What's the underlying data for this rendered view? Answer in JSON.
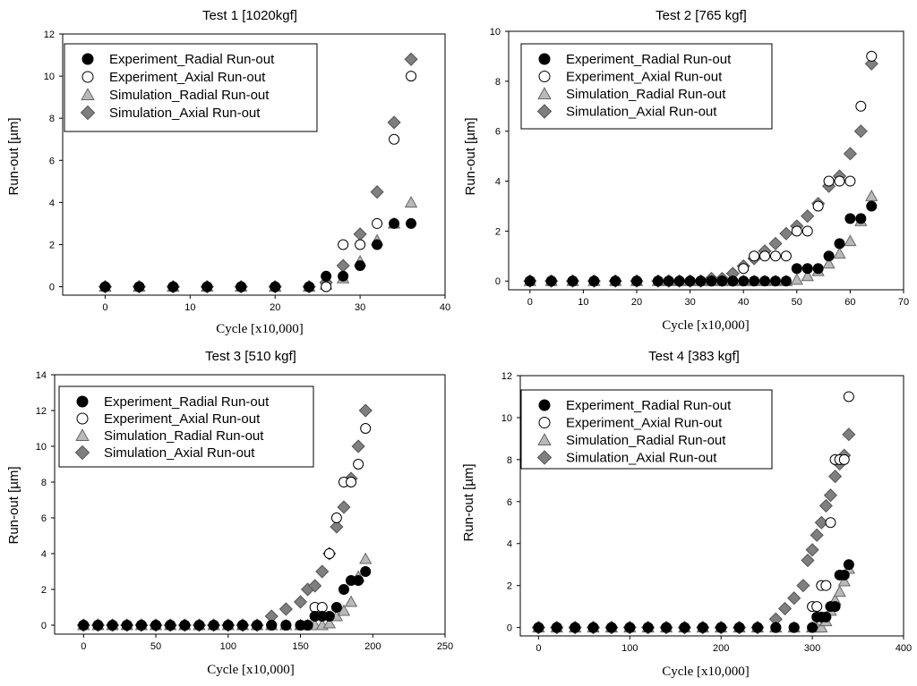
{
  "chart_data": [
    {
      "type": "scatter",
      "title": "Test 1 [1020kgf]",
      "xlabel": "Cycle [x10,000]",
      "ylabel": "Run-out [µm]",
      "xlim": [
        -5,
        40
      ],
      "ylim": [
        -0.4,
        12
      ],
      "xticks": [
        0,
        10,
        20,
        30,
        40
      ],
      "yticks": [
        0,
        2,
        4,
        6,
        8,
        10,
        12
      ],
      "legend": "top-left",
      "series": [
        {
          "name": "Experiment_Radial Run-out",
          "marker": "filled-circle",
          "x": [
            0,
            4,
            8,
            12,
            16,
            20,
            24,
            26,
            28,
            30,
            32,
            34,
            36
          ],
          "y": [
            0,
            0,
            0,
            0,
            0,
            0,
            0,
            0.5,
            0.5,
            1,
            2,
            3,
            3
          ]
        },
        {
          "name": "Experiment_Axial Run-out",
          "marker": "open-circle",
          "x": [
            0,
            4,
            8,
            12,
            16,
            20,
            24,
            26,
            28,
            30,
            32,
            34,
            36
          ],
          "y": [
            0,
            0,
            0,
            0,
            0,
            0,
            0,
            0,
            2,
            2,
            3,
            7,
            10
          ]
        },
        {
          "name": "Simulation_Radial Run-out",
          "marker": "triangle",
          "x": [
            0,
            4,
            8,
            12,
            16,
            20,
            24,
            26,
            28,
            30,
            32,
            34,
            36
          ],
          "y": [
            0,
            0,
            0,
            0,
            0,
            0,
            0,
            0.1,
            0.4,
            1.2,
            2.2,
            3,
            4
          ]
        },
        {
          "name": "Simulation_Axial Run-out",
          "marker": "diamond",
          "x": [
            0,
            4,
            8,
            12,
            16,
            20,
            24,
            26,
            28,
            30,
            32,
            34,
            36
          ],
          "y": [
            0,
            0,
            0,
            0,
            0,
            0,
            0,
            0.2,
            1,
            2.5,
            4.5,
            7.8,
            10.8
          ]
        }
      ]
    },
    {
      "type": "scatter",
      "title": "Test 2 [765 kgf]",
      "xlabel": "Cycle [x10,000]",
      "ylabel": "Run-out [µm]",
      "xlim": [
        -4,
        70
      ],
      "ylim": [
        -0.35,
        10
      ],
      "xticks": [
        0,
        10,
        20,
        30,
        40,
        50,
        60,
        70
      ],
      "yticks": [
        0,
        2,
        4,
        6,
        8,
        10
      ],
      "legend": "top-left",
      "series": [
        {
          "name": "Experiment_Radial Run-out",
          "marker": "filled-circle",
          "x": [
            0,
            4,
            8,
            12,
            16,
            20,
            24,
            26,
            28,
            30,
            32,
            34,
            36,
            38,
            40,
            42,
            44,
            46,
            48,
            50,
            52,
            54,
            56,
            58,
            60,
            62,
            64
          ],
          "y": [
            0,
            0,
            0,
            0,
            0,
            0,
            0,
            0,
            0,
            0,
            0,
            0,
            0,
            0,
            0,
            0,
            0,
            0,
            0,
            0.5,
            0.5,
            0.5,
            1,
            1.5,
            2.5,
            2.5,
            3
          ]
        },
        {
          "name": "Experiment_Axial Run-out",
          "marker": "open-circle",
          "x": [
            0,
            4,
            8,
            12,
            16,
            20,
            24,
            26,
            28,
            30,
            32,
            34,
            36,
            38,
            40,
            42,
            44,
            46,
            48,
            50,
            52,
            54,
            56,
            58,
            60,
            62,
            64
          ],
          "y": [
            0,
            0,
            0,
            0,
            0,
            0,
            0,
            0,
            0,
            0,
            0,
            0,
            0,
            0,
            0.5,
            1,
            1,
            1,
            1,
            2,
            2,
            3,
            4,
            4,
            4,
            7,
            9
          ]
        },
        {
          "name": "Simulation_Radial Run-out",
          "marker": "triangle",
          "x": [
            0,
            4,
            8,
            12,
            16,
            20,
            24,
            26,
            28,
            30,
            32,
            34,
            36,
            38,
            40,
            42,
            44,
            46,
            48,
            50,
            52,
            54,
            56,
            58,
            60,
            62,
            64
          ],
          "y": [
            0,
            0,
            0,
            0,
            0,
            0,
            0,
            0,
            0,
            0,
            0,
            0,
            0,
            0,
            0,
            0,
            0,
            0,
            0,
            0.05,
            0.2,
            0.4,
            0.7,
            1.1,
            1.6,
            2.4,
            3.4
          ]
        },
        {
          "name": "Simulation_Axial Run-out",
          "marker": "diamond",
          "x": [
            0,
            4,
            8,
            12,
            16,
            20,
            24,
            26,
            28,
            30,
            32,
            34,
            36,
            38,
            40,
            42,
            44,
            46,
            48,
            50,
            52,
            54,
            56,
            58,
            60,
            62,
            64
          ],
          "y": [
            0,
            0,
            0,
            0,
            0,
            0,
            0,
            0,
            0,
            0,
            0,
            0.1,
            0.1,
            0.3,
            0.6,
            0.9,
            1.2,
            1.5,
            1.9,
            2.2,
            2.6,
            3.1,
            3.8,
            4.2,
            5.1,
            6,
            8.7
          ]
        }
      ]
    },
    {
      "type": "scatter",
      "title": "Test 3 [510 kgf]",
      "xlabel": "Cycle [x10,000]",
      "ylabel": "Run-out [µm]",
      "xlim": [
        -20,
        250
      ],
      "ylim": [
        -0.5,
        14
      ],
      "xticks": [
        0,
        50,
        100,
        150,
        200,
        250
      ],
      "yticks": [
        0,
        2,
        4,
        6,
        8,
        10,
        12,
        14
      ],
      "legend": "top-left",
      "series": [
        {
          "name": "Experiment_Radial Run-out",
          "marker": "filled-circle",
          "x": [
            0,
            10,
            20,
            30,
            40,
            50,
            60,
            70,
            80,
            90,
            100,
            110,
            120,
            130,
            140,
            150,
            155,
            160,
            165,
            170,
            175,
            180,
            185,
            190,
            195
          ],
          "y": [
            0,
            0,
            0,
            0,
            0,
            0,
            0,
            0,
            0,
            0,
            0,
            0,
            0,
            0,
            0,
            0,
            0,
            0.5,
            0.5,
            0.5,
            1,
            2,
            2.5,
            2.5,
            3
          ]
        },
        {
          "name": "Experiment_Axial Run-out",
          "marker": "open-circle",
          "x": [
            0,
            10,
            20,
            30,
            40,
            50,
            60,
            70,
            80,
            90,
            100,
            110,
            120,
            130,
            140,
            150,
            155,
            160,
            165,
            170,
            175,
            180,
            185,
            190,
            195
          ],
          "y": [
            0,
            0,
            0,
            0,
            0,
            0,
            0,
            0,
            0,
            0,
            0,
            0,
            0,
            0,
            0,
            0,
            0,
            1,
            1,
            4,
            6,
            8,
            8,
            9,
            11
          ]
        },
        {
          "name": "Simulation_Radial Run-out",
          "marker": "triangle",
          "x": [
            0,
            10,
            20,
            30,
            40,
            50,
            60,
            70,
            80,
            90,
            100,
            110,
            120,
            130,
            140,
            150,
            155,
            160,
            165,
            170,
            175,
            180,
            185,
            190,
            195
          ],
          "y": [
            0,
            0,
            0,
            0,
            0,
            0,
            0,
            0,
            0,
            0,
            0,
            0,
            0,
            0,
            0,
            0,
            0,
            0,
            0,
            0.1,
            0.5,
            0.8,
            1.3,
            2.7,
            3.7
          ]
        },
        {
          "name": "Simulation_Axial Run-out",
          "marker": "diamond",
          "x": [
            0,
            10,
            20,
            30,
            40,
            50,
            60,
            70,
            80,
            90,
            100,
            110,
            120,
            130,
            140,
            150,
            155,
            160,
            165,
            170,
            175,
            180,
            185,
            190,
            195
          ],
          "y": [
            0,
            0,
            0,
            0,
            0,
            0,
            0,
            0,
            0,
            0,
            0,
            0,
            0,
            0.5,
            0.9,
            1.3,
            2,
            2.2,
            3,
            4,
            5.5,
            6.6,
            8.2,
            10,
            12
          ]
        }
      ]
    },
    {
      "type": "scatter",
      "title": "Test 4 [383 kgf]",
      "xlabel": "Cycle [x10,000]",
      "ylabel": "Run-out [µm]",
      "xlim": [
        -20,
        400
      ],
      "ylim": [
        -0.4,
        12
      ],
      "xticks": [
        0,
        100,
        200,
        300,
        400
      ],
      "yticks": [
        0,
        2,
        4,
        6,
        8,
        10,
        12
      ],
      "legend": "top-left",
      "series": [
        {
          "name": "Experiment_Radial Run-out",
          "marker": "filled-circle",
          "x": [
            0,
            20,
            40,
            60,
            80,
            100,
            120,
            140,
            160,
            180,
            200,
            220,
            240,
            260,
            280,
            300,
            305,
            310,
            315,
            320,
            325,
            330,
            335,
            340
          ],
          "y": [
            0,
            0,
            0,
            0,
            0,
            0,
            0,
            0,
            0,
            0,
            0,
            0,
            0,
            0,
            0,
            0,
            0.5,
            0.5,
            0.5,
            1,
            1,
            2.5,
            2.5,
            3
          ]
        },
        {
          "name": "Experiment_Axial Run-out",
          "marker": "open-circle",
          "x": [
            0,
            20,
            40,
            60,
            80,
            100,
            120,
            140,
            160,
            180,
            200,
            220,
            240,
            260,
            280,
            300,
            305,
            310,
            315,
            320,
            325,
            330,
            335,
            340
          ],
          "y": [
            0,
            0,
            0,
            0,
            0,
            0,
            0,
            0,
            0,
            0,
            0,
            0,
            0,
            0,
            0,
            1,
            1,
            2,
            2,
            5,
            8,
            8,
            8,
            11
          ]
        },
        {
          "name": "Simulation_Radial Run-out",
          "marker": "triangle",
          "x": [
            0,
            20,
            40,
            60,
            80,
            100,
            120,
            140,
            160,
            180,
            200,
            220,
            240,
            260,
            280,
            300,
            305,
            310,
            315,
            320,
            325,
            330,
            335,
            340
          ],
          "y": [
            0,
            0,
            0,
            0,
            0,
            0,
            0,
            0,
            0,
            0,
            0,
            0,
            0,
            0,
            0,
            0,
            0,
            0,
            0.3,
            0.8,
            1.3,
            1.7,
            2.2,
            2.8
          ]
        },
        {
          "name": "Simulation_Axial Run-out",
          "marker": "diamond",
          "x": [
            0,
            20,
            40,
            60,
            80,
            100,
            120,
            140,
            160,
            180,
            200,
            220,
            240,
            260,
            270,
            280,
            290,
            295,
            300,
            305,
            310,
            315,
            320,
            325,
            330,
            335,
            340
          ],
          "y": [
            0,
            0,
            0,
            0,
            0,
            0,
            0,
            0,
            0,
            0,
            0,
            0,
            0,
            0.4,
            0.9,
            1.4,
            2,
            3.2,
            3.7,
            4.4,
            5,
            5.8,
            6.3,
            7.2,
            7.8,
            8.2,
            9.2
          ]
        }
      ]
    }
  ],
  "colors": {
    "filled": "#000000",
    "triangle_fill": "#b9b9b9",
    "diamond_fill": "#7f7f7f",
    "open_fill": "#ffffff"
  }
}
